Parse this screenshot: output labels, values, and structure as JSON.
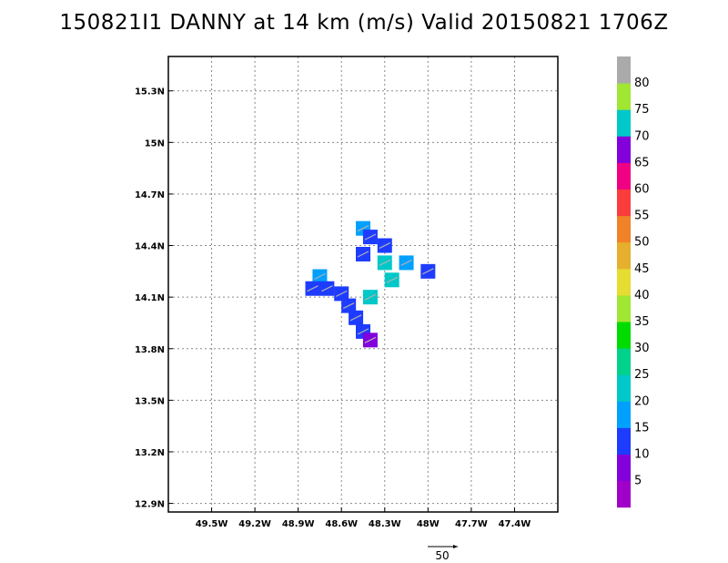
{
  "title": "150821I1 DANNY at 14 km (m/s) Valid 20150821 1706Z",
  "map": {
    "lon_range": [
      -49.8,
      -47.1
    ],
    "lat_range": [
      12.85,
      15.5
    ],
    "x_ticks": [
      {
        "value": -49.5,
        "label": "49.5W"
      },
      {
        "value": -49.2,
        "label": "49.2W"
      },
      {
        "value": -48.9,
        "label": "48.9W"
      },
      {
        "value": -48.6,
        "label": "48.6W"
      },
      {
        "value": -48.3,
        "label": "48.3W"
      },
      {
        "value": -48.0,
        "label": "48W"
      },
      {
        "value": -47.7,
        "label": "47.7W"
      },
      {
        "value": -47.4,
        "label": "47.4W"
      }
    ],
    "y_ticks": [
      {
        "value": 15.3,
        "label": "15.3N"
      },
      {
        "value": 15.0,
        "label": "15N"
      },
      {
        "value": 14.7,
        "label": "14.7N"
      },
      {
        "value": 14.4,
        "label": "14.4N"
      },
      {
        "value": 14.1,
        "label": "14.1N"
      },
      {
        "value": 13.8,
        "label": "13.8N"
      },
      {
        "value": 13.5,
        "label": "13.5N"
      },
      {
        "value": 13.2,
        "label": "13.2N"
      },
      {
        "value": 12.9,
        "label": "12.9N"
      }
    ],
    "grid": "dotted",
    "vector_reference": {
      "value": 50,
      "label": "50"
    }
  },
  "colorbar": {
    "colors": [
      "#a000c8",
      "#8200dc",
      "#1e3cff",
      "#00a0ff",
      "#00c8c8",
      "#00d28c",
      "#00dc00",
      "#a0e632",
      "#e6dc32",
      "#e6af2d",
      "#f08228",
      "#fa3c3c",
      "#f00082",
      "#8200dc",
      "#00c8c8",
      "#a0e632",
      "#aaaaaa"
    ],
    "labels": [
      "5",
      "10",
      "15",
      "20",
      "25",
      "30",
      "35",
      "40",
      "45",
      "50",
      "55",
      "60",
      "65",
      "70",
      "75",
      "80"
    ]
  },
  "chart_data": {
    "type": "heatmap",
    "title": "150821I1 DANNY at 14 km (m/s) Valid 20150821 1706Z",
    "units": "m/s",
    "cells": [
      {
        "lon": -48.75,
        "lat": 14.22,
        "value": 17
      },
      {
        "lon": -48.8,
        "lat": 14.15,
        "value": 12
      },
      {
        "lon": -48.7,
        "lat": 14.15,
        "value": 12
      },
      {
        "lon": -48.6,
        "lat": 14.12,
        "value": 12
      },
      {
        "lon": -48.55,
        "lat": 14.05,
        "value": 12
      },
      {
        "lon": -48.5,
        "lat": 13.98,
        "value": 12
      },
      {
        "lon": -48.45,
        "lat": 13.9,
        "value": 12
      },
      {
        "lon": -48.4,
        "lat": 13.85,
        "value": 8
      },
      {
        "lon": -48.45,
        "lat": 14.5,
        "value": 17
      },
      {
        "lon": -48.4,
        "lat": 14.45,
        "value": 12
      },
      {
        "lon": -48.3,
        "lat": 14.4,
        "value": 12
      },
      {
        "lon": -48.3,
        "lat": 14.3,
        "value": 22
      },
      {
        "lon": -48.25,
        "lat": 14.2,
        "value": 22
      },
      {
        "lon": -48.4,
        "lat": 14.1,
        "value": 22
      },
      {
        "lon": -48.15,
        "lat": 14.3,
        "value": 17
      },
      {
        "lon": -48.0,
        "lat": 14.25,
        "value": 12
      },
      {
        "lon": -48.45,
        "lat": 14.35,
        "value": 12
      }
    ]
  }
}
